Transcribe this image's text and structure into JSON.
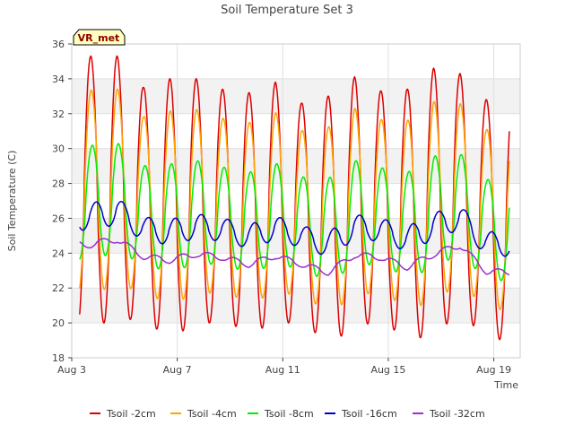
{
  "chart_data": {
    "type": "line",
    "title": "Soil Temperature Set 3",
    "xlabel": "Time",
    "ylabel": "Soil Temperature (C)",
    "site_label": "VR_met",
    "x_unit": "day of August",
    "xlim": [
      3,
      20
    ],
    "ylim": [
      18,
      36
    ],
    "yticks": [
      18,
      20,
      22,
      24,
      26,
      28,
      30,
      32,
      34,
      36
    ],
    "xticks": [
      {
        "value": 3,
        "label": "Aug 3"
      },
      {
        "value": 7,
        "label": "Aug 7"
      },
      {
        "value": 11,
        "label": "Aug 11"
      },
      {
        "value": 15,
        "label": "Aug 15"
      },
      {
        "value": 19,
        "label": "Aug 19"
      }
    ],
    "grid": true,
    "shaded_bands": true,
    "legend_position": "bottom",
    "start_day": 3.3,
    "end_day": 19.6,
    "daily_peaks": [
      {
        "day": 3.72,
        "min": 19.7,
        "max": 35.3
      },
      {
        "day": 4.72,
        "min": 20.3,
        "max": 35.3
      },
      {
        "day": 5.72,
        "min": 20.1,
        "max": 33.5
      },
      {
        "day": 6.72,
        "min": 19.2,
        "max": 34.0
      },
      {
        "day": 7.72,
        "min": 19.9,
        "max": 34.0
      },
      {
        "day": 8.72,
        "min": 20.1,
        "max": 33.4
      },
      {
        "day": 9.72,
        "min": 19.5,
        "max": 33.2
      },
      {
        "day": 10.72,
        "min": 19.9,
        "max": 33.8
      },
      {
        "day": 11.72,
        "min": 20.1,
        "max": 32.6
      },
      {
        "day": 12.72,
        "min": 18.8,
        "max": 33.0
      },
      {
        "day": 13.72,
        "min": 19.7,
        "max": 34.1
      },
      {
        "day": 14.72,
        "min": 20.2,
        "max": 33.3
      },
      {
        "day": 15.72,
        "min": 19.0,
        "max": 33.4
      },
      {
        "day": 16.72,
        "min": 19.3,
        "max": 34.6
      },
      {
        "day": 17.72,
        "min": 20.6,
        "max": 34.3
      },
      {
        "day": 18.72,
        "min": 19.1,
        "max": 32.8
      },
      {
        "day": 19.72,
        "min": 19.0,
        "max": 32.8
      }
    ],
    "series": [
      {
        "name": "Tsoil -2cm",
        "color": "#dd0000",
        "mean_offset": 0.0,
        "amp_scale": 1.0,
        "phase_lag": 0.0
      },
      {
        "name": "Tsoil -4cm",
        "color": "#ffa500",
        "mean_offset": 0.0,
        "amp_scale": 0.75,
        "phase_lag": 0.02
      },
      {
        "name": "Tsoil -8cm",
        "color": "#00ee00",
        "mean_offset": -0.6,
        "amp_scale": 0.42,
        "phase_lag": 0.06
      },
      {
        "name": "Tsoil -16cm",
        "color": "#0000cc",
        "mean_offset": -1.4,
        "amp_scale": 0.1,
        "phase_lag": 0.2
      },
      {
        "name": "Tsoil -32cm",
        "color": "#9932cc",
        "mean_offset": -3.0,
        "amp_scale": 0.025,
        "phase_lag": 0.45
      }
    ]
  }
}
